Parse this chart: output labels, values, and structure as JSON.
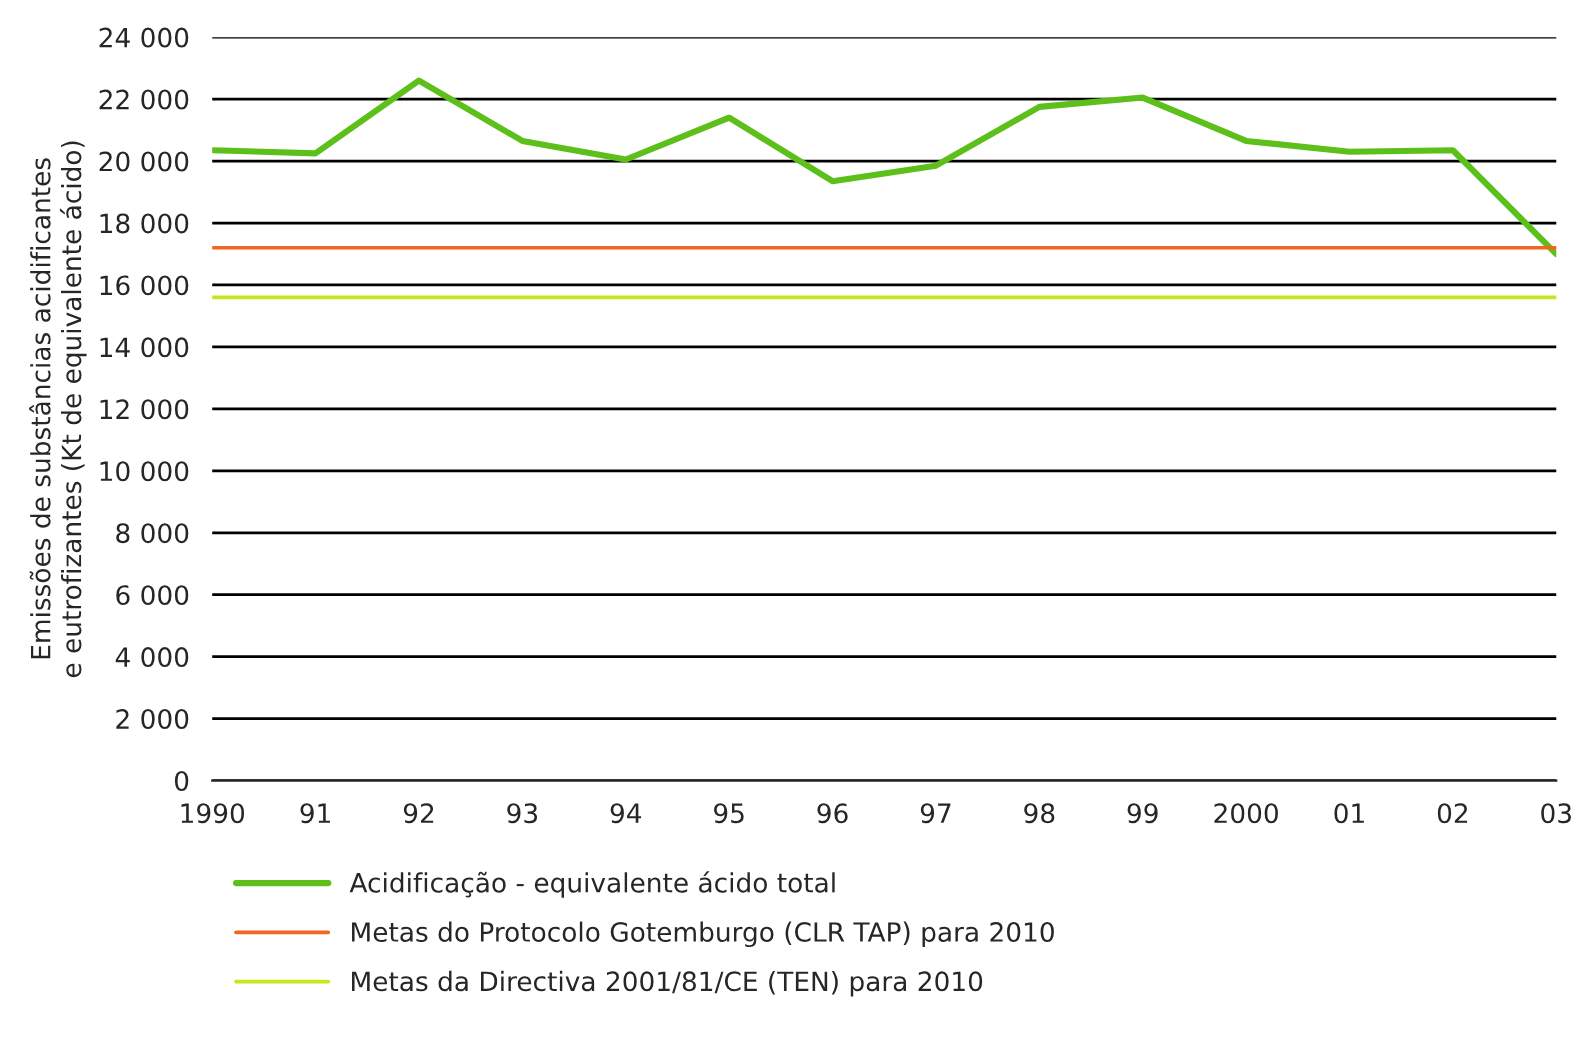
{
  "chart_data": {
    "type": "line",
    "ylabel": "Emissões de substâncias acidificantes\ne eutrofizantes (Kt de equivalente ácido)",
    "categories": [
      "1990",
      "91",
      "92",
      "93",
      "94",
      "95",
      "96",
      "97",
      "98",
      "99",
      "2000",
      "01",
      "02",
      "03"
    ],
    "series": [
      {
        "name": "Acidificação - equivalente ácido total",
        "color": "#5cbf1a",
        "values": [
          20350,
          20250,
          22600,
          20650,
          20050,
          21400,
          19350,
          19850,
          21750,
          22050,
          20650,
          20300,
          20350,
          17000
        ]
      },
      {
        "name": "Metas do Protocolo Gotemburgo (CLR TAP) para 2010",
        "color": "#f26522",
        "values": [
          17200,
          17200,
          17200,
          17200,
          17200,
          17200,
          17200,
          17200,
          17200,
          17200,
          17200,
          17200,
          17200,
          17200
        ]
      },
      {
        "name": "Metas da Directiva 2001/81/CE (TEN) para 2010",
        "color": "#c8e61e",
        "values": [
          15600,
          15600,
          15600,
          15600,
          15600,
          15600,
          15600,
          15600,
          15600,
          15600,
          15600,
          15600,
          15600,
          15600
        ]
      }
    ],
    "ylim": [
      0,
      24000
    ],
    "yticks": [
      {
        "value": 0,
        "label": "0"
      },
      {
        "value": 2000,
        "label": "2 000"
      },
      {
        "value": 4000,
        "label": "4 000"
      },
      {
        "value": 6000,
        "label": "6 000"
      },
      {
        "value": 8000,
        "label": "8 000"
      },
      {
        "value": 10000,
        "label": "10 000"
      },
      {
        "value": 12000,
        "label": "12 000"
      },
      {
        "value": 14000,
        "label": "14 000"
      },
      {
        "value": 16000,
        "label": "16 000"
      },
      {
        "value": 18000,
        "label": "18 000"
      },
      {
        "value": 20000,
        "label": "20 000"
      },
      {
        "value": 22000,
        "label": "22 000"
      },
      {
        "value": 24000,
        "label": "24 000"
      }
    ],
    "grid": "y",
    "legend": "bottom"
  }
}
